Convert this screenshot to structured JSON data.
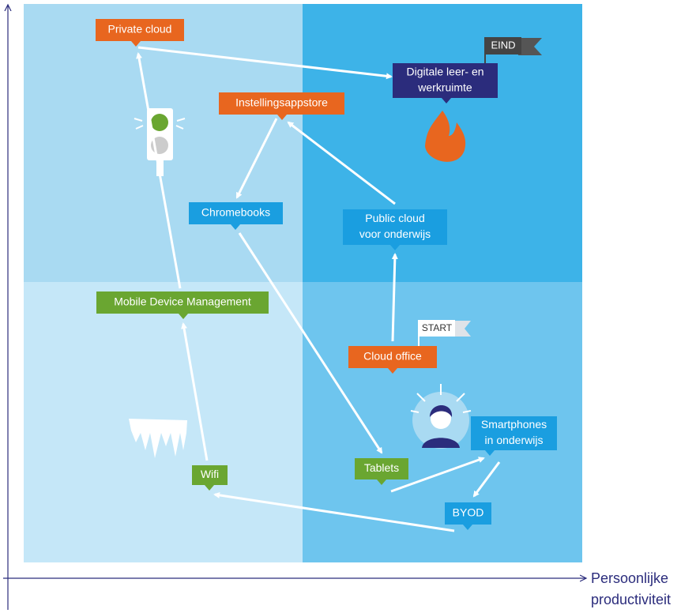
{
  "nodes": [
    {
      "lines": [
        "Private cloud"
      ],
      "color": "orange"
    },
    {
      "lines": [
        "Digitale leer- en",
        "werkruimte"
      ],
      "color": "navy"
    },
    {
      "lines": [
        "Instellingsappstore"
      ],
      "color": "orange"
    },
    {
      "lines": [
        "Chromebooks"
      ],
      "color": "blue"
    },
    {
      "lines": [
        "Public cloud",
        "voor onderwijs"
      ],
      "color": "blue"
    },
    {
      "lines": [
        "Mobile Device Management"
      ],
      "color": "green"
    },
    {
      "lines": [
        "Cloud office"
      ],
      "color": "orange"
    },
    {
      "lines": [
        "Smartphones",
        "in onderwijs"
      ],
      "color": "blue"
    },
    {
      "lines": [
        "Tablets"
      ],
      "color": "green"
    },
    {
      "lines": [
        "Wifi"
      ],
      "color": "green"
    },
    {
      "lines": [
        "BYOD"
      ],
      "color": "blue"
    }
  ],
  "flags": {
    "start": "START",
    "end": "EIND"
  },
  "x_axis_label": [
    "Persoonlijke",
    "productiviteit"
  ]
}
